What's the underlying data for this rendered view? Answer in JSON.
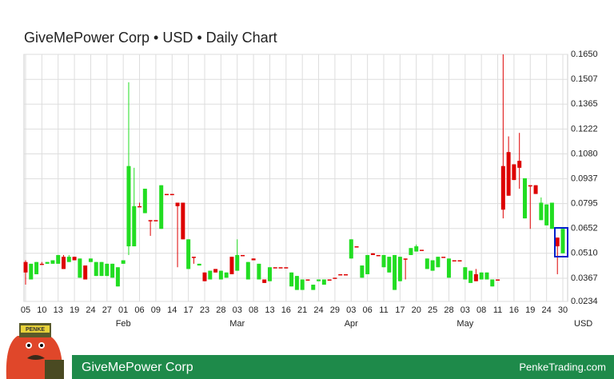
{
  "chart_data": {
    "type": "candlestick",
    "title": "GiveMePower Corp • USD • Daily Chart",
    "unit_label": "USD",
    "up_color": "#22dd22",
    "down_color": "#dd0000",
    "ylim": [
      0.0234,
      0.165
    ],
    "yticks": [
      {
        "value": 0.165,
        "label": "0.1650"
      },
      0.1507,
      0.1365,
      0.1222,
      {
        "value": 0.108,
        "label": "0.1080"
      },
      0.0937,
      0.0795,
      0.0652,
      {
        "value": 0.051,
        "label": "0.0510"
      },
      0.0367,
      0.0234
    ],
    "grid": true,
    "categories": [
      "05",
      null,
      null,
      "10",
      null,
      null,
      "13",
      null,
      null,
      "19",
      null,
      null,
      "24",
      null,
      null,
      "27",
      null,
      null,
      "01",
      null,
      null,
      "06",
      null,
      null,
      "09",
      null,
      null,
      "14",
      null,
      null,
      "17",
      null,
      null,
      "23",
      null,
      null,
      "28",
      null,
      null,
      "03",
      null,
      null,
      "08",
      null,
      null,
      "13",
      null,
      null,
      "16",
      null,
      null,
      "21",
      null,
      null,
      "24",
      null,
      null,
      "29",
      null,
      null,
      "03",
      null,
      null,
      "06",
      null,
      null,
      "11",
      null,
      null,
      "17",
      null,
      null,
      "20",
      null,
      null,
      "25",
      null,
      null,
      "28",
      null,
      null,
      "03",
      null,
      null,
      "08",
      null,
      null,
      "11",
      null,
      null,
      "16",
      null,
      null,
      "19",
      null,
      null,
      "24",
      null,
      null,
      "30"
    ],
    "months": [
      null,
      null,
      null,
      null,
      null,
      null,
      null,
      null,
      null,
      null,
      null,
      null,
      null,
      null,
      null,
      null,
      null,
      null,
      "Feb",
      null,
      null,
      null,
      null,
      null,
      null,
      null,
      null,
      null,
      null,
      null,
      null,
      null,
      null,
      null,
      null,
      null,
      null,
      null,
      null,
      "Mar",
      null,
      null,
      null,
      null,
      null,
      null,
      null,
      null,
      null,
      null,
      null,
      null,
      null,
      null,
      null,
      null,
      null,
      null,
      null,
      null,
      "Apr",
      null,
      null,
      null,
      null,
      null,
      null,
      null,
      null,
      null,
      null,
      null,
      null,
      null,
      null,
      null,
      null,
      null,
      null,
      null,
      null,
      "May",
      null,
      null,
      null,
      null,
      null,
      null,
      null,
      null,
      null,
      null,
      null,
      null,
      null,
      null,
      null,
      null,
      null,
      null
    ],
    "open": [
      0.046,
      0.036,
      0.039,
      0.045,
      0.045,
      0.045,
      0.045,
      0.049,
      0.046,
      0.049,
      0.037,
      0.044,
      0.046,
      0.038,
      0.038,
      0.038,
      0.037,
      0.032,
      0.045,
      0.055,
      0.055,
      0.078,
      0.074,
      0.07,
      0.07,
      0.065,
      0.085,
      0.085,
      0.08,
      0.08,
      0.042,
      0.049,
      0.044,
      0.04,
      0.036,
      0.042,
      0.036,
      0.037,
      0.049,
      0.041,
      0.05,
      0.036,
      0.048,
      0.036,
      0.036,
      0.035,
      0.043,
      0.043,
      0.043,
      0.032,
      0.03,
      0.03,
      0.036,
      0.03,
      0.035,
      0.033,
      0.036,
      0.037,
      0.039,
      0.039,
      0.048,
      0.055,
      0.037,
      0.039,
      0.051,
      0.05,
      0.043,
      0.04,
      0.03,
      0.035,
      0.048,
      0.05,
      0.052,
      0.053,
      0.042,
      0.041,
      0.043,
      0.049,
      0.037,
      0.047,
      0.047,
      0.036,
      0.034,
      0.039,
      0.036,
      0.036,
      0.032,
      0.036,
      0.101,
      0.109,
      0.102,
      0.104,
      0.071,
      0.09,
      0.09,
      0.07,
      0.067,
      0.065,
      0.06,
      0.051
    ],
    "high": [
      0.047,
      0.045,
      0.046,
      0.046,
      0.046,
      0.047,
      0.05,
      0.05,
      0.05,
      0.049,
      0.048,
      0.044,
      0.048,
      0.046,
      0.046,
      0.045,
      0.045,
      0.043,
      0.047,
      0.149,
      0.1,
      0.08,
      0.088,
      0.07,
      0.07,
      0.09,
      0.085,
      0.085,
      0.08,
      0.08,
      0.059,
      0.049,
      0.045,
      0.04,
      0.041,
      0.042,
      0.041,
      0.04,
      0.049,
      0.059,
      0.05,
      0.046,
      0.048,
      0.045,
      0.036,
      0.043,
      0.043,
      0.043,
      0.043,
      0.04,
      0.038,
      0.036,
      0.036,
      0.033,
      0.036,
      0.036,
      0.036,
      0.037,
      0.039,
      0.039,
      0.059,
      0.055,
      0.044,
      0.05,
      0.051,
      0.05,
      0.05,
      0.049,
      0.05,
      0.049,
      0.048,
      0.054,
      0.056,
      0.053,
      0.048,
      0.047,
      0.049,
      0.049,
      0.048,
      0.047,
      0.047,
      0.043,
      0.041,
      0.042,
      0.04,
      0.04,
      0.036,
      0.036,
      0.165,
      0.118,
      0.102,
      0.12,
      0.094,
      0.09,
      0.09,
      0.083,
      0.079,
      0.08,
      0.06,
      0.065
    ],
    "low": [
      0.033,
      0.036,
      0.039,
      0.045,
      0.045,
      0.045,
      0.045,
      0.042,
      0.046,
      0.047,
      0.037,
      0.036,
      0.046,
      0.038,
      0.038,
      0.038,
      0.037,
      0.032,
      0.045,
      0.05,
      0.055,
      0.078,
      0.074,
      0.061,
      0.07,
      0.065,
      0.085,
      0.085,
      0.043,
      0.059,
      0.042,
      0.045,
      0.044,
      0.035,
      0.036,
      0.04,
      0.036,
      0.037,
      0.039,
      0.041,
      0.05,
      0.036,
      0.047,
      0.036,
      0.034,
      0.035,
      0.043,
      0.043,
      0.043,
      0.032,
      0.03,
      0.03,
      0.036,
      0.03,
      0.035,
      0.033,
      0.036,
      0.037,
      0.039,
      0.039,
      0.048,
      0.055,
      0.037,
      0.039,
      0.05,
      0.05,
      0.043,
      0.04,
      0.03,
      0.035,
      0.036,
      0.05,
      0.052,
      0.053,
      0.042,
      0.041,
      0.043,
      0.049,
      0.037,
      0.047,
      0.047,
      0.036,
      0.034,
      0.035,
      0.036,
      0.036,
      0.032,
      0.036,
      0.071,
      0.084,
      0.093,
      0.088,
      0.071,
      0.065,
      0.085,
      0.07,
      0.067,
      0.065,
      0.039,
      0.051
    ],
    "close": [
      0.04,
      0.045,
      0.046,
      0.045,
      0.046,
      0.047,
      0.05,
      0.042,
      0.049,
      0.047,
      0.048,
      0.036,
      0.048,
      0.046,
      0.046,
      0.045,
      0.045,
      0.043,
      0.047,
      0.101,
      0.078,
      0.078,
      0.088,
      0.07,
      0.07,
      0.09,
      0.085,
      0.085,
      0.078,
      0.059,
      0.059,
      0.049,
      0.045,
      0.035,
      0.041,
      0.04,
      0.041,
      0.04,
      0.039,
      0.05,
      0.05,
      0.046,
      0.047,
      0.045,
      0.034,
      0.043,
      0.043,
      0.043,
      0.043,
      0.04,
      0.038,
      0.036,
      0.036,
      0.033,
      0.036,
      0.036,
      0.036,
      0.037,
      0.039,
      0.039,
      0.059,
      0.055,
      0.044,
      0.05,
      0.05,
      0.05,
      0.05,
      0.049,
      0.05,
      0.049,
      0.048,
      0.054,
      0.055,
      0.053,
      0.048,
      0.047,
      0.049,
      0.049,
      0.048,
      0.047,
      0.047,
      0.043,
      0.041,
      0.035,
      0.04,
      0.04,
      0.036,
      0.036,
      0.076,
      0.084,
      0.093,
      0.1,
      0.094,
      0.09,
      0.085,
      0.08,
      0.079,
      0.08,
      0.055,
      0.065
    ]
  },
  "footer": {
    "name": "GiveMePower Corp",
    "site": "PenkeTrading.com",
    "logo": "PENKE"
  }
}
